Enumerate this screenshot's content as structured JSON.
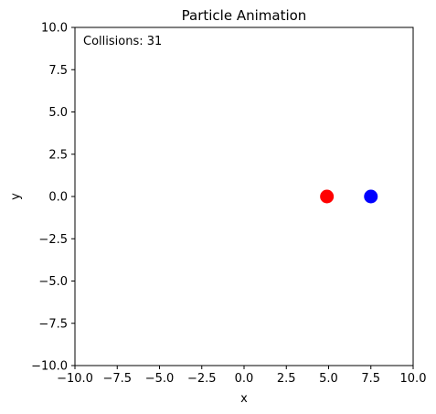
{
  "chart_data": {
    "type": "scatter",
    "title": "Particle Animation",
    "xlabel": "x",
    "ylabel": "y",
    "xlim": [
      -10,
      10
    ],
    "ylim": [
      -10,
      10
    ],
    "xticks": [
      -10,
      -7.5,
      -5,
      -2.5,
      0,
      2.5,
      5,
      7.5,
      10
    ],
    "yticks": [
      -10,
      -7.5,
      -5,
      -2.5,
      0,
      2.5,
      5,
      7.5,
      10
    ],
    "xtick_labels": [
      "−10.0",
      "−7.5",
      "−5.0",
      "−2.5",
      "0.0",
      "2.5",
      "5.0",
      "7.5",
      "10.0"
    ],
    "ytick_labels": [
      "−10.0",
      "−7.5",
      "−5.0",
      "−2.5",
      "0.0",
      "2.5",
      "5.0",
      "7.5",
      "10.0"
    ],
    "grid": false,
    "points": [
      {
        "x": 4.9,
        "y": 0.0,
        "color": "#ff0000"
      },
      {
        "x": 7.5,
        "y": 0.0,
        "color": "#0000ff"
      }
    ],
    "annotation": "Collisions: 31"
  }
}
